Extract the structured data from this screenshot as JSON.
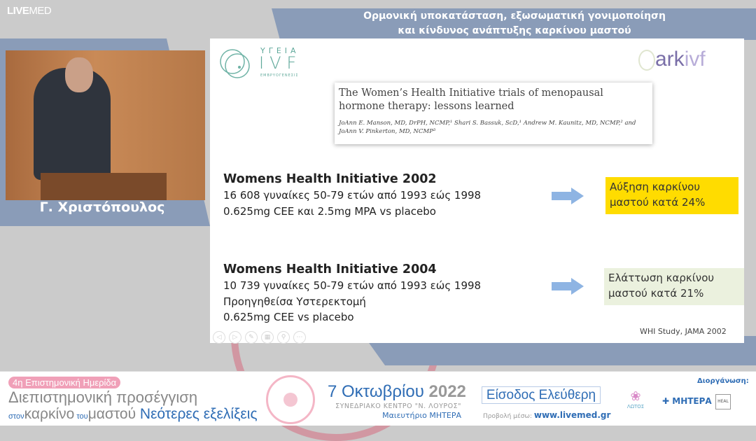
{
  "broadcaster": {
    "logo_bold": "LIVE",
    "logo_light": "MED"
  },
  "speaker": {
    "name": "Γ. Χριστόπουλος"
  },
  "header": {
    "title_line1": "Ορμονική υποκατάσταση, εξωσωματική γονιμοποίηση",
    "title_line2": "και κίνδυνος ανάπτυξης καρκίνου μαστού"
  },
  "slide": {
    "logo_left": {
      "top": "ΥΓΕΙΑ",
      "main": "IVF",
      "sub": "ΕΜΒΡΥΟΓΕΝΕΣΙΣ"
    },
    "logo_right": {
      "text_a": "ark",
      "text_b": "ivf"
    },
    "paper": {
      "title": "The Women’s Health Initiative trials of menopausal hormone therapy: lessons learned",
      "authors": "JoAnn E. Manson, MD, DrPH, NCMP,¹ Shari S. Bassuk, ScD,¹ Andrew M. Kaunitz, MD, NCMP,² and JoAnn V. Pinkerton, MD, NCMP³"
    },
    "studies": [
      {
        "heading": "Womens Health Initiative 2002",
        "lines": [
          "16 608 γυναίκες 50-79 ετών από 1993 εώς 1998",
          "0.625mg CEE και 2.5mg MPA vs placebo"
        ],
        "result_line1": "Αύξηση καρκίνου",
        "result_line2": "μαστού κατά 24%",
        "result_color": "#ffdc00"
      },
      {
        "heading": "Womens Health Initiative 2004",
        "lines": [
          "10 739 γυναίκες 50-79 ετών από 1993 εώς 1998",
          "Προηγηθείσα Υστερεκτομή",
          "0.625mg CEE vs placebo"
        ],
        "result_line1": "Ελάττωση καρκίνου",
        "result_line2": "μαστού κατά 21%",
        "result_color": "#ebf1de"
      }
    ],
    "citation": "WHI Study, JAMA 2002",
    "controls": [
      "previous-icon",
      "next-icon",
      "pen-icon",
      "slides-icon",
      "zoom-icon",
      "more-icon"
    ]
  },
  "footer": {
    "event_tag": "4η Επιστημονική Ημερίδα",
    "line1": "Διεπιστημονική προσέγγιση",
    "line2_a": "στον",
    "line2_b": "καρκίνο",
    "line2_c": "του",
    "line2_d": "μαστού",
    "line2_e": "Νεότερες εξελίξεις",
    "date": "7 Οκτωβρίου",
    "year": "2022",
    "venue": "ΣΥΝΕΔΡΙΑΚΟ ΚΕΝΤΡΟ \"Ν. ΛΟΥΡΟΣ\"",
    "venue2": "Μαιευτήριο ΜΗΤΕΡΑ",
    "entry": "Είσοδος Ελεύθερη",
    "stream_label": "Προβολή μέσω:",
    "stream_url": "www.livemed.gr",
    "organizer_label": "Διοργάνωση:",
    "sponsors": [
      "ΛΩΤΟΣ",
      "ΜΗΤΕΡΑ",
      "HEAL"
    ]
  },
  "colors": {
    "accent_blue": "#8a9cb8",
    "highlight_yellow": "#ffdc00",
    "highlight_green": "#ebf1de",
    "brand_teal": "#5fa89a",
    "footer_blue": "#2f6db5"
  }
}
